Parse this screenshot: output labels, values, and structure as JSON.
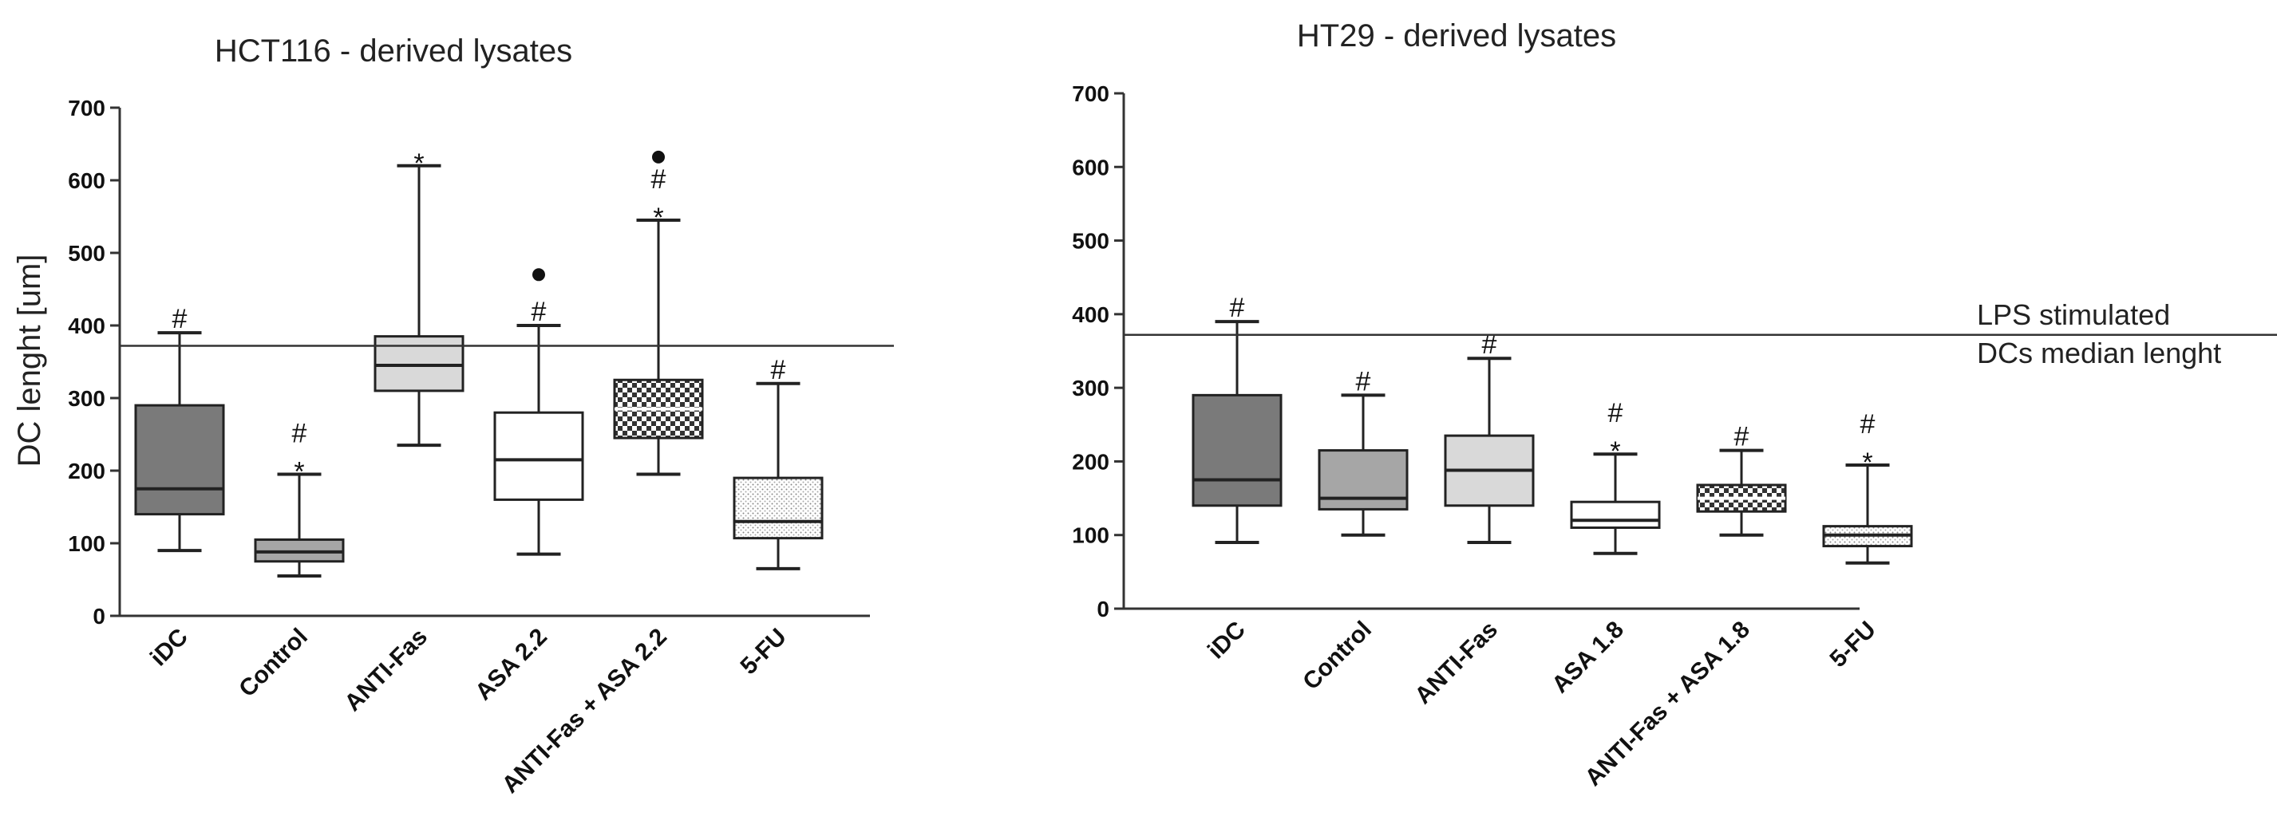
{
  "reference_line": {
    "value": 372,
    "label_line1": "LPS stimulated",
    "label_line2": "DCs median lenght"
  },
  "chart_data": [
    {
      "type": "box",
      "title": "HCT116 - derived lysates",
      "ylabel": "DC lenght [um]",
      "xlabel": "",
      "ylim": [
        0,
        700
      ],
      "yticks": [
        "0",
        "100",
        "200",
        "300",
        "400",
        "500",
        "600",
        "700"
      ],
      "grid": false,
      "categories": [
        "iDC",
        "Control",
        "ANTI-Fas",
        "ASA  2.2",
        "ANTI-Fas + ASA 2.2",
        "5-FU"
      ],
      "boxes": [
        {
          "min": 90,
          "q1": 140,
          "median": 175,
          "q3": 290,
          "max": 390,
          "fill": "#7a7a7a",
          "pattern": "solid",
          "markers": [
            "#"
          ],
          "outlier": null
        },
        {
          "min": 55,
          "q1": 75,
          "median": 88,
          "q3": 105,
          "max": 195,
          "fill": "#a6a6a6",
          "pattern": "solid",
          "markers": [
            "#",
            "*"
          ],
          "outlier": null
        },
        {
          "min": 235,
          "q1": 310,
          "median": 345,
          "q3": 385,
          "max": 620,
          "fill": "#d9d9d9",
          "pattern": "solid",
          "markers": [
            "*"
          ],
          "outlier": null
        },
        {
          "min": 85,
          "q1": 160,
          "median": 215,
          "q3": 280,
          "max": 400,
          "fill": "#ffffff",
          "pattern": "solid",
          "markers": [
            "#"
          ],
          "outlier": 470
        },
        {
          "min": 195,
          "q1": 245,
          "median": 285,
          "q3": 325,
          "max": 545,
          "fill": "#ffffff",
          "pattern": "checker",
          "markers": [
            "#",
            "*"
          ],
          "outlier": 632
        },
        {
          "min": 65,
          "q1": 107,
          "median": 130,
          "q3": 190,
          "max": 320,
          "fill": "#ffffff",
          "pattern": "dots",
          "markers": [
            "#"
          ],
          "outlier": null
        }
      ]
    },
    {
      "type": "box",
      "title": "HT29 - derived lysates",
      "ylabel": "",
      "xlabel": "",
      "ylim": [
        0,
        700
      ],
      "yticks": [
        "0",
        "100",
        "200",
        "300",
        "400",
        "500",
        "600",
        "700"
      ],
      "grid": false,
      "categories": [
        "iDC",
        "Control",
        "ANTI-Fas",
        "ASA  1.8",
        "ANTI-Fas + ASA 1.8",
        "5-FU"
      ],
      "boxes": [
        {
          "min": 90,
          "q1": 140,
          "median": 175,
          "q3": 290,
          "max": 390,
          "fill": "#7a7a7a",
          "pattern": "solid",
          "markers": [
            "#"
          ],
          "outlier": null
        },
        {
          "min": 100,
          "q1": 135,
          "median": 150,
          "q3": 215,
          "max": 290,
          "fill": "#a6a6a6",
          "pattern": "solid",
          "markers": [
            "#"
          ],
          "outlier": null
        },
        {
          "min": 90,
          "q1": 140,
          "median": 188,
          "q3": 235,
          "max": 340,
          "fill": "#d9d9d9",
          "pattern": "solid",
          "markers": [
            "#"
          ],
          "outlier": null
        },
        {
          "min": 75,
          "q1": 110,
          "median": 120,
          "q3": 145,
          "max": 210,
          "fill": "#ffffff",
          "pattern": "solid",
          "markers": [
            "#",
            "*"
          ],
          "outlier": null
        },
        {
          "min": 100,
          "q1": 132,
          "median": 150,
          "q3": 168,
          "max": 215,
          "fill": "#ffffff",
          "pattern": "checker",
          "markers": [
            "#"
          ],
          "outlier": null
        },
        {
          "min": 62,
          "q1": 85,
          "median": 100,
          "q3": 112,
          "max": 195,
          "fill": "#ffffff",
          "pattern": "dots",
          "markers": [
            "#",
            "*"
          ],
          "outlier": null
        }
      ]
    }
  ]
}
